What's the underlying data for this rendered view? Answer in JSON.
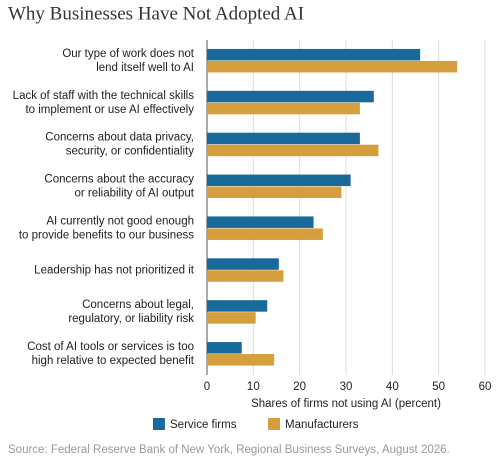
{
  "chart_data": {
    "type": "bar",
    "orientation": "horizontal",
    "title": "Why Businesses Have Not Adopted AI",
    "categories": [
      "Our type of work does not\nlend itself well to AI",
      "Lack of staff with the technical skills\nto implement or use AI effectively",
      "Concerns about data privacy,\nsecurity, or confidentiality",
      "Concerns about the accuracy\nor reliability of AI output",
      "AI currently not good enough\nto provide benefits to our business",
      "Leadership has not prioritized it",
      "Concerns about legal,\nregulatory, or liability risk",
      "Cost of AI tools or services is too\nhigh relative to expected benefit"
    ],
    "series": [
      {
        "name": "Service firms",
        "color": "#19699b",
        "values": [
          46,
          36,
          33,
          31,
          23,
          15.5,
          13,
          7.5
        ]
      },
      {
        "name": "Manufacturers",
        "color": "#d49f3c",
        "values": [
          54,
          33,
          37,
          29,
          25,
          16.5,
          10.5,
          14.5
        ]
      }
    ],
    "xlabel": "Shares of firms not using AI (percent)",
    "xlim": [
      0,
      60
    ],
    "xticks": [
      0,
      10,
      20,
      30,
      40,
      50,
      60
    ],
    "grid": true,
    "source": "Source: Federal Reserve Bank of New York, Regional Business Surveys, August 2026."
  }
}
